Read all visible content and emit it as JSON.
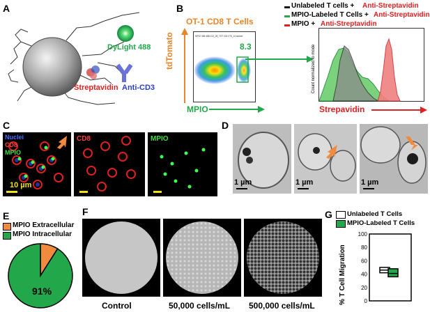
{
  "panels": {
    "A": {
      "label": "A",
      "dye": "DyLight 488",
      "protein": "Streptavidin",
      "antibody": "Anti-CD3"
    },
    "B": {
      "label": "B",
      "title": "OT-1 CD8  T Cells",
      "y_axis": "tdTomato",
      "x_axis": "MPIO",
      "gate_value": "8.3",
      "plot_header": "MPIO 488 488-013_28_TDT 032-075_14 subset",
      "legend": [
        {
          "prefix": "Unlabeled T cells + ",
          "suffix": "Anti-Streptavidin",
          "color": "#1a1a1a"
        },
        {
          "prefix": "MPIO-Labeled T Cells + ",
          "suffix": "Anti-Streptavidin",
          "color": "#2aa84a"
        },
        {
          "prefix": "MPIO + ",
          "suffix": "Anti-Streptavidin",
          "color": "#e02020"
        }
      ],
      "hist_ylabel": "Count normalized to mode",
      "hist_xlabel": "Strepavidin"
    },
    "C": {
      "label": "C",
      "channels": [
        "Nuclei",
        "CD8",
        "MPIO"
      ],
      "scale": "10 µm",
      "cd8_label": "CD8",
      "mpio_label": "MPIO"
    },
    "D": {
      "label": "D",
      "scales": [
        "1 µm",
        "1 µm",
        "1 µm"
      ]
    },
    "E": {
      "label": "E",
      "legend": [
        "MPIO Extracellular",
        "MPIO Intracellular"
      ],
      "colors": [
        "#f08a3c",
        "#22a84a"
      ],
      "fractions": [
        0.09,
        0.91
      ],
      "percent_label": "91%"
    },
    "F": {
      "label": "F",
      "captions": [
        "Control",
        "50,000 cells/mL",
        "500,000 cells/mL"
      ]
    },
    "G": {
      "label": "G",
      "legend": [
        "Unlabeled T Cells",
        "MPIO-Labeled T Cells"
      ],
      "ylabel": "% T Cell Migration",
      "yticks": [
        "0",
        "20",
        "40",
        "60",
        "80",
        "100"
      ],
      "unlabeled_box": [
        42,
        46,
        50
      ],
      "labeled_box": [
        36,
        41,
        48
      ]
    }
  },
  "colors": {
    "orange": "#e8862a",
    "green": "#22a84a",
    "red": "#e02020",
    "blue": "#2a3fc0"
  }
}
